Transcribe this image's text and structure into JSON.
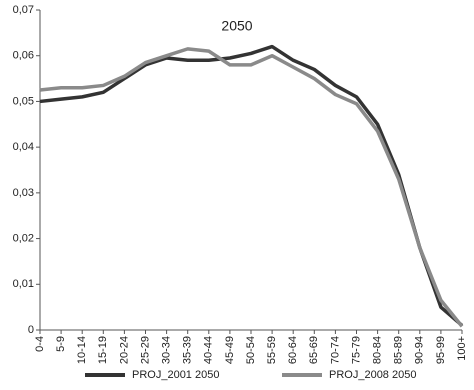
{
  "chart_data": {
    "type": "line",
    "title": "2050",
    "categories": [
      "0-4",
      "5-9",
      "10-14",
      "15-19",
      "20-24",
      "25-29",
      "30-34",
      "35-39",
      "40-44",
      "45-49",
      "50-54",
      "55-59",
      "60-64",
      "65-69",
      "70-74",
      "75-79",
      "80-84",
      "85-89",
      "90-94",
      "95-99",
      "100+"
    ],
    "series": [
      {
        "name": "PROJ_2001 2050",
        "color": "#333333",
        "values": [
          0.05,
          0.0505,
          0.051,
          0.052,
          0.055,
          0.058,
          0.0595,
          0.059,
          0.059,
          0.0595,
          0.0605,
          0.062,
          0.059,
          0.057,
          0.0535,
          0.051,
          0.045,
          0.034,
          0.018,
          0.005,
          0.001
        ]
      },
      {
        "name": "PROJ_2008 2050",
        "color": "#8a8a8a",
        "values": [
          0.0525,
          0.053,
          0.053,
          0.0535,
          0.0555,
          0.0585,
          0.06,
          0.0615,
          0.061,
          0.058,
          0.058,
          0.06,
          0.0575,
          0.055,
          0.0515,
          0.0495,
          0.0435,
          0.033,
          0.018,
          0.0065,
          0.0008
        ]
      }
    ],
    "ylim": [
      0,
      0.07
    ],
    "yticks": [
      0,
      {
        "value": 0.01,
        "label": "0,01"
      },
      {
        "value": 0.02,
        "label": "0,02"
      },
      {
        "value": 0.03,
        "label": "0,03"
      },
      {
        "value": 0.04,
        "label": "0,04"
      },
      {
        "value": 0.05,
        "label": "0,05"
      },
      {
        "value": 0.06,
        "label": "0,06"
      },
      {
        "value": 0.07,
        "label": "0,07"
      }
    ],
    "grid": false
  }
}
